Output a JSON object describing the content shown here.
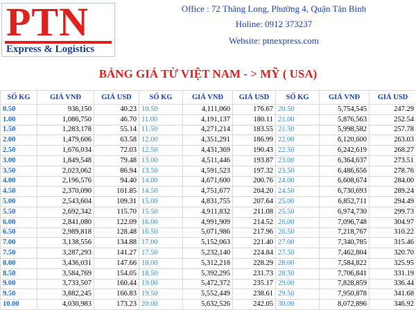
{
  "logo": {
    "name": "PTN",
    "tagline": "Express & Logistics"
  },
  "contact": {
    "office": "Office : 72 Thăng Long, Phường 4, Quận Tân Bình",
    "hotline": "Holine: 0912 373237",
    "website": "Website: ptnexpress.com"
  },
  "title": "BẢNG GIÁ TỪ VIỆT NAM - >  MỸ ( USA)",
  "table": {
    "columns": [
      "SỐ KG",
      "GIÁ VNĐ",
      "GIÁ USD",
      "SỐ KG",
      "GIÁ VNĐ",
      "GIÁ USD",
      "SỐ KG",
      "GIÁ VNĐ",
      "GIÁ USD"
    ],
    "rows": [
      [
        "0.50",
        "936,150",
        "40.23",
        "10.50",
        "4,111,060",
        "176.67",
        "20.50",
        "5,754,545",
        "247.29"
      ],
      [
        "1.00",
        "1,086,750",
        "46.70",
        "11.00",
        "4,191,137",
        "180.11",
        "21.00",
        "5,876,563",
        "252.54"
      ],
      [
        "1.50",
        "1,283,178",
        "55.14",
        "11.50",
        "4,271,214",
        "183.55",
        "21.50",
        "5,998,582",
        "257.78"
      ],
      [
        "2.00",
        "1,479,606",
        "63.58",
        "12.00",
        "4,351,291",
        "186.99",
        "22.00",
        "6,120,600",
        "263.03"
      ],
      [
        "2.50",
        "1,676,034",
        "72.03",
        "12.50",
        "4,431,369",
        "190.43",
        "22.50",
        "6,242,619",
        "268.27"
      ],
      [
        "3.00",
        "1,849,548",
        "79.48",
        "13.00",
        "4,511,446",
        "193.87",
        "23.00",
        "6,364,637",
        "273.51"
      ],
      [
        "3.50",
        "2,023,062",
        "86.94",
        "13.50",
        "4,591,523",
        "197.32",
        "23.50",
        "6,486,656",
        "278.76"
      ],
      [
        "4.00",
        "2,196,576",
        "94.40",
        "14.00",
        "4,671,600",
        "200.76",
        "24.00",
        "6,608,674",
        "284.00"
      ],
      [
        "4.50",
        "2,370,090",
        "101.85",
        "14.50",
        "4,751,677",
        "204.20",
        "24.50",
        "6,730,693",
        "289.24"
      ],
      [
        "5.00",
        "2,543,604",
        "109.31",
        "15.00",
        "4,831,755",
        "207.64",
        "25.00",
        "6,852,711",
        "294.49"
      ],
      [
        "5.50",
        "2,692,342",
        "115.70",
        "15.50",
        "4,911,832",
        "211.08",
        "25.50",
        "6,974,730",
        "299.73"
      ],
      [
        "6.00",
        "2,841,080",
        "122.09",
        "16.00",
        "4,991,909",
        "214.52",
        "26.00",
        "7,096,748",
        "304.97"
      ],
      [
        "6.50",
        "2,989,818",
        "128.48",
        "16.50",
        "5,071,986",
        "217.96",
        "26.50",
        "7,218,767",
        "310.22"
      ],
      [
        "7.00",
        "3,138,556",
        "134.88",
        "17.00",
        "5,152,063",
        "221.40",
        "27.00",
        "7,340,785",
        "315.46"
      ],
      [
        "7.50",
        "3,287,293",
        "141.27",
        "17.50",
        "5,232,140",
        "224.84",
        "27.50",
        "7,462,804",
        "320.70"
      ],
      [
        "8.00",
        "3,436,031",
        "147.66",
        "18.00",
        "5,312,218",
        "228.29",
        "28.00",
        "7,584,822",
        "325.95"
      ],
      [
        "8.50",
        "3,584,769",
        "154.05",
        "18.50",
        "5,392,295",
        "231.73",
        "28.50",
        "7,706,841",
        "331.19"
      ],
      [
        "9.00",
        "3,733,507",
        "160.44",
        "19.00",
        "5,472,372",
        "235.17",
        "29.00",
        "7,828,859",
        "336.44"
      ],
      [
        "9.50",
        "3,882,245",
        "166.83",
        "19.50",
        "5,552,449",
        "238.61",
        "29.50",
        "7,950,878",
        "341.68"
      ],
      [
        "10.00",
        "4,030,983",
        "173.23",
        "20.00",
        "5,632,526",
        "242.05",
        "30.00",
        "8,072,896",
        "346.92"
      ]
    ]
  }
}
